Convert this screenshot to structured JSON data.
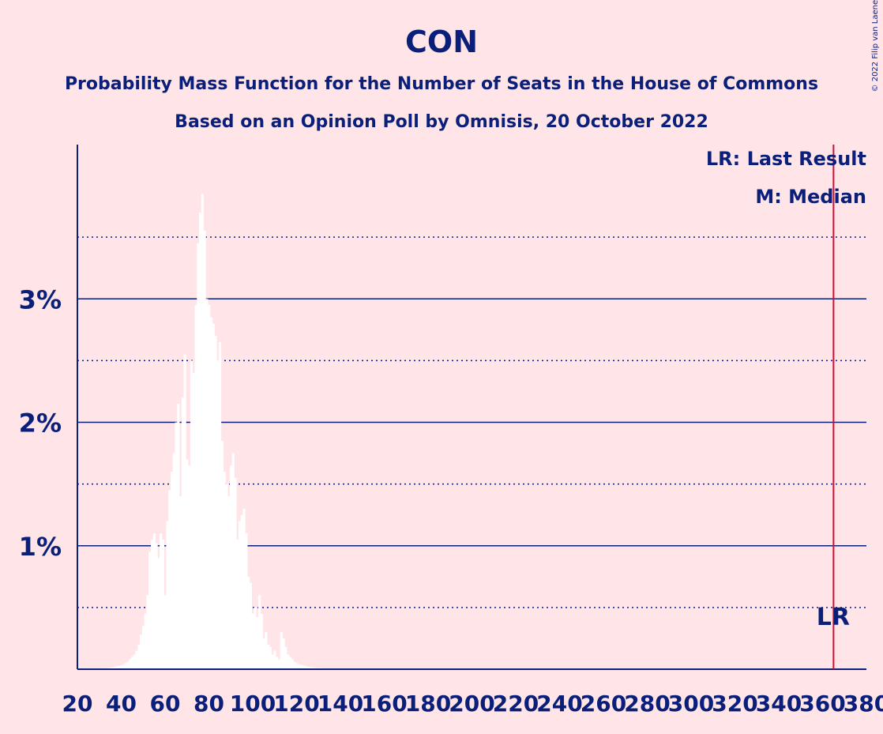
{
  "chart_data": {
    "type": "bar",
    "title": "CON",
    "subtitle_lines": [
      "Probability Mass Function for the Number of Seats in the House of Commons",
      "Based on an Opinion Poll by Omnisis, 20 October 2022"
    ],
    "xlabel": "",
    "ylabel": "",
    "xlim": [
      20,
      380
    ],
    "ylim": [
      0,
      4.25
    ],
    "x_ticks": [
      20,
      40,
      60,
      80,
      100,
      120,
      140,
      160,
      180,
      200,
      220,
      240,
      260,
      280,
      300,
      320,
      340,
      360,
      380
    ],
    "x_tick_labels": [
      "20",
      "40",
      "60",
      "80",
      "100",
      "120",
      "140",
      "160",
      "180",
      "200",
      "220",
      "240",
      "260",
      "280",
      "300",
      "320",
      "340",
      "360",
      "380"
    ],
    "y_major_ticks": [
      1,
      2,
      3
    ],
    "y_tick_labels": [
      "1%",
      "2%",
      "3%"
    ],
    "y_minor_ticks": [
      0.5,
      1.5,
      2.5,
      3.5
    ],
    "grid": true,
    "legend": {
      "position": "top-right",
      "entries": [
        "LR: Last Result",
        "M: Median"
      ]
    },
    "last_result": {
      "x": 365,
      "label": "LR"
    },
    "bar_color": "#ffffff",
    "grid_color": "#0a1f7a",
    "last_result_color": "#cc1133",
    "series": [
      {
        "x": [
          30,
          31,
          32,
          33,
          34,
          35,
          36,
          37,
          38,
          39,
          40,
          41,
          42,
          43,
          44,
          45,
          46,
          47,
          48,
          49,
          50,
          51,
          52,
          53,
          54,
          55,
          56,
          57,
          58,
          59,
          60,
          61,
          62,
          63,
          64,
          65,
          66,
          67,
          68,
          69,
          70,
          71,
          72,
          73,
          74,
          75,
          76,
          77,
          78,
          79,
          80,
          81,
          82,
          83,
          84,
          85,
          86,
          87,
          88,
          89,
          90,
          91,
          92,
          93,
          94,
          95,
          96,
          97,
          98,
          99,
          100,
          101,
          102,
          103,
          104,
          105,
          106,
          107,
          108,
          109,
          110,
          111,
          112,
          113,
          114,
          115,
          116,
          117,
          118,
          119,
          120,
          121,
          122,
          123,
          124,
          125,
          126,
          127,
          128,
          129,
          130,
          131,
          132,
          133,
          134,
          135,
          136,
          137,
          138,
          139,
          140,
          141,
          142,
          143,
          144,
          145,
          146,
          147,
          148,
          149,
          150,
          151,
          152,
          153,
          154,
          155
        ],
        "values": [
          0.005,
          0.006,
          0.007,
          0.008,
          0.01,
          0.012,
          0.015,
          0.018,
          0.022,
          0.026,
          0.03,
          0.04,
          0.05,
          0.06,
          0.08,
          0.1,
          0.12,
          0.15,
          0.2,
          0.28,
          0.35,
          0.45,
          0.6,
          0.95,
          1.05,
          1.1,
          1.02,
          0.9,
          1.1,
          1.05,
          0.6,
          1.2,
          1.45,
          1.6,
          1.75,
          2.0,
          2.15,
          1.4,
          2.2,
          2.55,
          1.7,
          1.65,
          2.5,
          2.4,
          2.95,
          3.45,
          3.7,
          3.85,
          3.55,
          3.0,
          2.95,
          2.85,
          2.8,
          2.7,
          2.5,
          2.65,
          1.85,
          1.6,
          1.5,
          1.4,
          1.65,
          1.75,
          1.55,
          1.05,
          1.2,
          1.25,
          1.3,
          1.1,
          0.75,
          0.7,
          0.45,
          0.5,
          0.42,
          0.6,
          0.45,
          0.25,
          0.3,
          0.2,
          0.18,
          0.12,
          0.15,
          0.1,
          0.08,
          0.3,
          0.25,
          0.18,
          0.12,
          0.1,
          0.08,
          0.06,
          0.05,
          0.04,
          0.035,
          0.03,
          0.025,
          0.02,
          0.018,
          0.015,
          0.012,
          0.01,
          0.01,
          0.008,
          0.007,
          0.006,
          0.005,
          0.005,
          0.004,
          0.004,
          0.003,
          0.003,
          0.003,
          0.002,
          0.002,
          0.002,
          0.002,
          0.001,
          0.001,
          0.001,
          0.001,
          0.001,
          0.001,
          0.001,
          0.001,
          0.001,
          0.001,
          0.001
        ]
      }
    ]
  },
  "copyright": "© 2022 Filip van Laenen"
}
